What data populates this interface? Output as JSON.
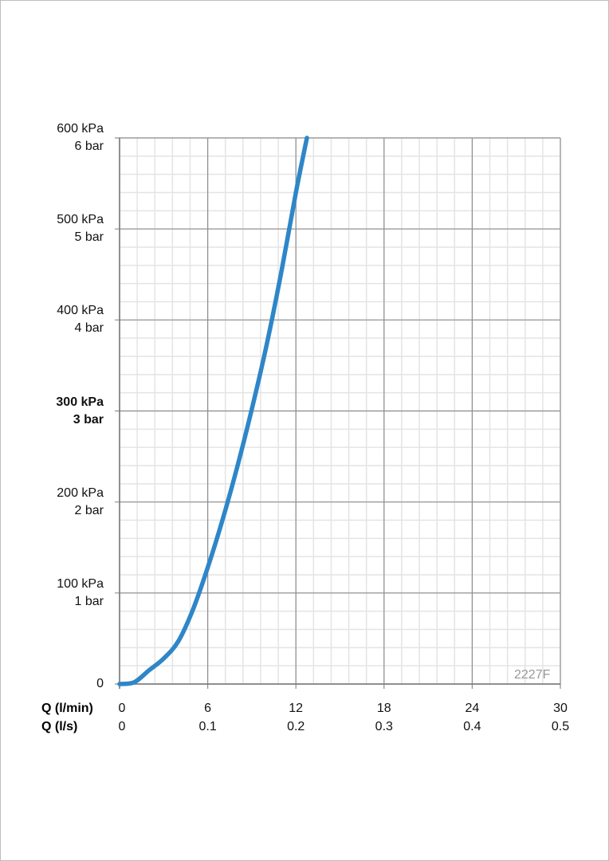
{
  "chart_data": {
    "type": "line",
    "y_ticks": [
      {
        "value": 0,
        "kpa": "0",
        "bar": "",
        "bold": false
      },
      {
        "value": 100,
        "kpa": "100 kPa",
        "bar": "1 bar",
        "bold": false
      },
      {
        "value": 200,
        "kpa": "200 kPa",
        "bar": "2 bar",
        "bold": false
      },
      {
        "value": 300,
        "kpa": "300 kPa",
        "bar": "3 bar",
        "bold": true
      },
      {
        "value": 400,
        "kpa": "400 kPa",
        "bar": "4 bar",
        "bold": false
      },
      {
        "value": 500,
        "kpa": "500 kPa",
        "bar": "5 bar",
        "bold": false
      },
      {
        "value": 600,
        "kpa": "600 kPa",
        "bar": "6 bar",
        "bold": false
      }
    ],
    "x_ticks_lmin": [
      "0",
      "6",
      "12",
      "18",
      "24",
      "30"
    ],
    "x_ticks_ls": [
      "0",
      "0.1",
      "0.2",
      "0.3",
      "0.4",
      "0.5"
    ],
    "x_label_lmin": "Q (l/min)",
    "x_label_ls": "Q (l/s)",
    "xlim": [
      0,
      30
    ],
    "ylim": [
      0,
      600
    ],
    "grid": true,
    "annotation": "2227F",
    "series": [
      {
        "color": "#2e86c8",
        "x": [
          0,
          1,
          2,
          3,
          4,
          5,
          6,
          7,
          8,
          9,
          10,
          11,
          12,
          12.75
        ],
        "y": [
          0,
          2,
          15,
          28,
          47,
          82,
          128,
          180,
          238,
          302,
          372,
          452,
          540,
          600
        ]
      }
    ]
  }
}
